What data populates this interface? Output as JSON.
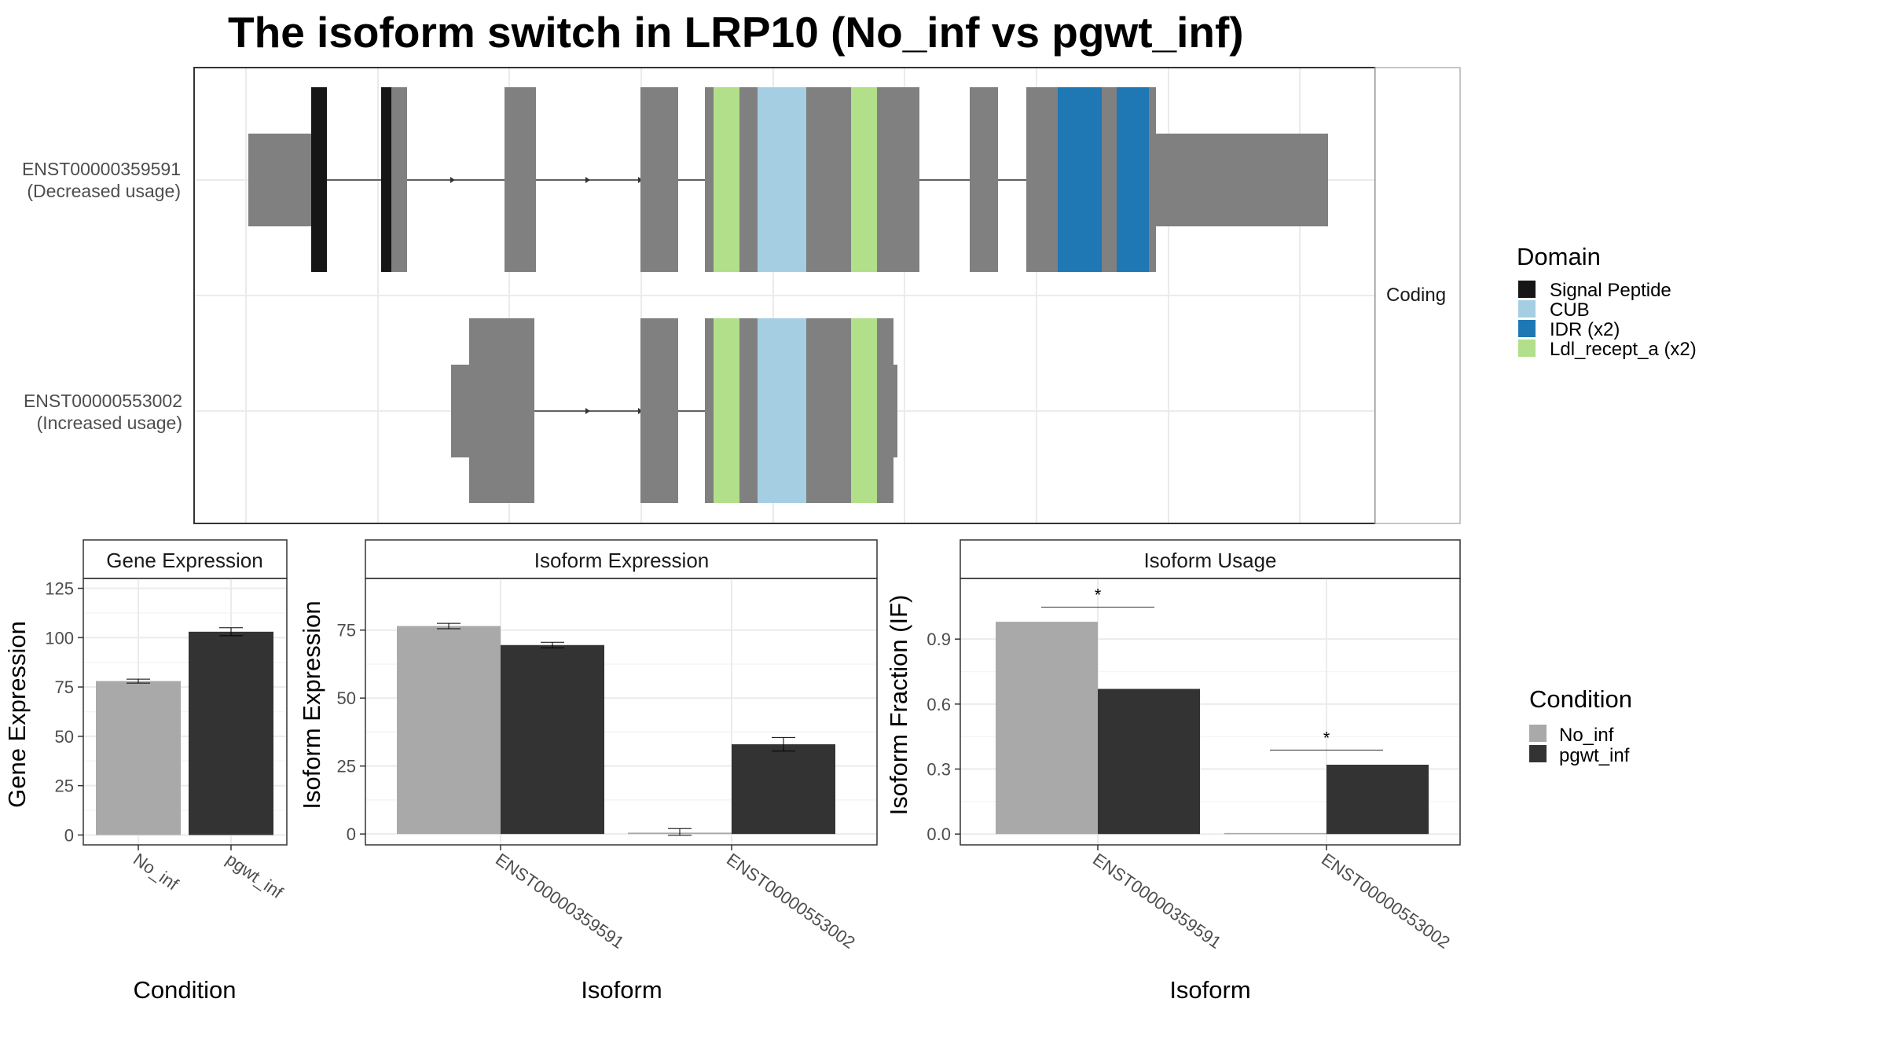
{
  "title": "The isoform switch in LRP10 (No_inf vs pgwt_inf)",
  "colors": {
    "exon": "#808080",
    "signal_peptide": "#161616",
    "cub": "#a6cee3",
    "idr": "#1f78b4",
    "ldl": "#b2df8a",
    "no_inf": "#a9a9a9",
    "pgwt_inf": "#333333"
  },
  "structure": {
    "facet_label": "Coding",
    "transcripts": [
      {
        "id": "ENST00000359591",
        "usage": "(Decreased usage)"
      },
      {
        "id": "ENST00000553002",
        "usage": "(Increased usage)"
      }
    ]
  },
  "legend_domain": {
    "title": "Domain",
    "items": [
      {
        "label": "Signal Peptide",
        "color": "#161616"
      },
      {
        "label": "CUB",
        "color": "#a6cee3"
      },
      {
        "label": "IDR (x2)",
        "color": "#1f78b4"
      },
      {
        "label": "Ldl_recept_a (x2)",
        "color": "#b2df8a"
      }
    ]
  },
  "legend_condition": {
    "title": "Condition",
    "items": [
      {
        "label": "No_inf",
        "color": "#a9a9a9"
      },
      {
        "label": "pgwt_inf",
        "color": "#333333"
      }
    ]
  },
  "chart_data": [
    {
      "type": "bar",
      "title": "Gene Expression",
      "xlabel": "Condition",
      "ylabel": "Gene Expression",
      "categories": [
        "No_inf",
        "pgwt_inf"
      ],
      "values": [
        78,
        103
      ],
      "errors": [
        [
          77,
          79
        ],
        [
          101,
          105
        ]
      ],
      "ylim": [
        -5,
        130
      ],
      "yticks": [
        0,
        25,
        50,
        75,
        100,
        125
      ]
    },
    {
      "type": "bar",
      "title": "Isoform Expression",
      "xlabel": "Isoform",
      "ylabel": "Isoform Expression",
      "categories": [
        "ENST00000359591",
        "ENST00000553002"
      ],
      "series": [
        {
          "name": "No_inf",
          "values": [
            76.5,
            0.5
          ],
          "errors": [
            [
              75.5,
              77.5
            ],
            [
              -0.5,
              2.0
            ]
          ]
        },
        {
          "name": "pgwt_inf",
          "values": [
            69.5,
            33
          ],
          "errors": [
            [
              68.5,
              70.5
            ],
            [
              30.5,
              35.5
            ]
          ]
        }
      ],
      "ylim": [
        -4,
        94
      ],
      "yticks": [
        0,
        25,
        50,
        75
      ]
    },
    {
      "type": "bar",
      "title": "Isoform Usage",
      "xlabel": "Isoform",
      "ylabel": "Isoform Fraction (IF)",
      "categories": [
        "ENST00000359591",
        "ENST00000553002"
      ],
      "series": [
        {
          "name": "No_inf",
          "values": [
            0.98,
            0.005
          ]
        },
        {
          "name": "pgwt_inf",
          "values": [
            0.67,
            0.32
          ]
        }
      ],
      "significance": [
        "*",
        "*"
      ],
      "ylim": [
        -0.05,
        1.18
      ],
      "yticks": [
        "0.0",
        "0.3",
        "0.6",
        "0.9"
      ]
    }
  ]
}
